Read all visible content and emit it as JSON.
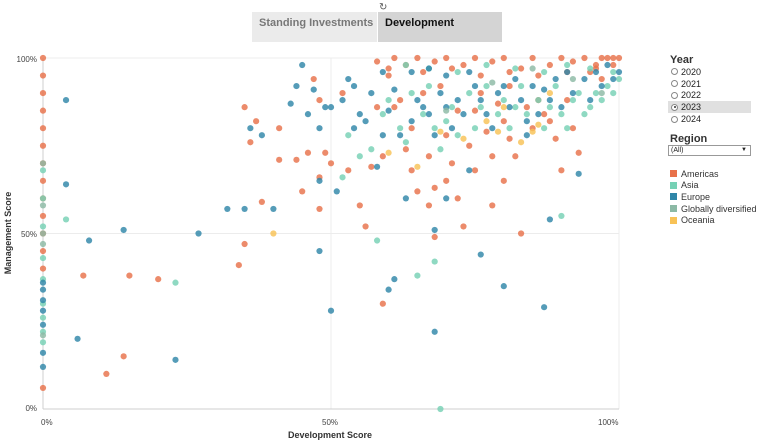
{
  "tabs": [
    {
      "label": "Standing Investments",
      "active": false
    },
    {
      "label": "Development",
      "active": true
    }
  ],
  "filters": {
    "year_title": "Year",
    "years": [
      "2020",
      "2021",
      "2022",
      "2023",
      "2024"
    ],
    "selected_year": "2023",
    "region_title": "Region",
    "region_value": "(All)"
  },
  "legend": [
    {
      "label": "Americas",
      "color": "#e8714a"
    },
    {
      "label": "Asia",
      "color": "#76d1b5"
    },
    {
      "label": "Europe",
      "color": "#2f86a8"
    },
    {
      "label": "Globally diversified",
      "color": "#8cb9a5"
    },
    {
      "label": "Oceania",
      "color": "#f8c256"
    }
  ],
  "chart_data": {
    "type": "scatter",
    "xlabel": "Development Score",
    "ylabel": "Management Score",
    "xlim": [
      0,
      100
    ],
    "ylim": [
      0,
      100
    ],
    "x_ticks": [
      "0%",
      "50%",
      "100%"
    ],
    "y_ticks": [
      "0%",
      "50%",
      "100%"
    ],
    "grid": true,
    "series": [
      {
        "name": "Americas",
        "color": "#e8714a",
        "points": [
          [
            0,
            100
          ],
          [
            0,
            95
          ],
          [
            0,
            90
          ],
          [
            0,
            85
          ],
          [
            0,
            80
          ],
          [
            0,
            75
          ],
          [
            0,
            70
          ],
          [
            0,
            65
          ],
          [
            0,
            60
          ],
          [
            0,
            55
          ],
          [
            0,
            50
          ],
          [
            0,
            45
          ],
          [
            0,
            40
          ],
          [
            0,
            6
          ],
          [
            7,
            38
          ],
          [
            11,
            10
          ],
          [
            14,
            15
          ],
          [
            15,
            38
          ],
          [
            20,
            37
          ],
          [
            34,
            41
          ],
          [
            35,
            47
          ],
          [
            35,
            86
          ],
          [
            36,
            76
          ],
          [
            37,
            82
          ],
          [
            38,
            59
          ],
          [
            41,
            71
          ],
          [
            41,
            80
          ],
          [
            44,
            71
          ],
          [
            45,
            62
          ],
          [
            46,
            73
          ],
          [
            47,
            94
          ],
          [
            48,
            66
          ],
          [
            48,
            57
          ],
          [
            48,
            88
          ],
          [
            49,
            73
          ],
          [
            50,
            70
          ],
          [
            52,
            90
          ],
          [
            53,
            68
          ],
          [
            55,
            58
          ],
          [
            56,
            52
          ],
          [
            57,
            69
          ],
          [
            58,
            86
          ],
          [
            59,
            30
          ],
          [
            59,
            72
          ],
          [
            60,
            95
          ],
          [
            61,
            86
          ],
          [
            62,
            88
          ],
          [
            63,
            74
          ],
          [
            64,
            80
          ],
          [
            64,
            68
          ],
          [
            65,
            62
          ],
          [
            66,
            90
          ],
          [
            67,
            72
          ],
          [
            67,
            58
          ],
          [
            68,
            63
          ],
          [
            68,
            49
          ],
          [
            69,
            92
          ],
          [
            70,
            78
          ],
          [
            70,
            65
          ],
          [
            71,
            70
          ],
          [
            72,
            85
          ],
          [
            72,
            60
          ],
          [
            73,
            52
          ],
          [
            74,
            75
          ],
          [
            75,
            85
          ],
          [
            75,
            68
          ],
          [
            76,
            90
          ],
          [
            77,
            79
          ],
          [
            78,
            58
          ],
          [
            78,
            72
          ],
          [
            79,
            87
          ],
          [
            80,
            82
          ],
          [
            80,
            65
          ],
          [
            81,
            77
          ],
          [
            81,
            92
          ],
          [
            82,
            72
          ],
          [
            83,
            50
          ],
          [
            84,
            86
          ],
          [
            85,
            80
          ],
          [
            86,
            88
          ],
          [
            87,
            84
          ],
          [
            88,
            82
          ],
          [
            89,
            77
          ],
          [
            90,
            68
          ],
          [
            91,
            88
          ],
          [
            92,
            80
          ],
          [
            93,
            73
          ],
          [
            95,
            96
          ],
          [
            96,
            98
          ],
          [
            97,
            100
          ],
          [
            99,
            100
          ],
          [
            100,
            100
          ],
          [
            61,
            100
          ],
          [
            65,
            100
          ],
          [
            70,
            100
          ],
          [
            75,
            100
          ],
          [
            80,
            100
          ],
          [
            85,
            100
          ],
          [
            90,
            100
          ],
          [
            94,
            100
          ],
          [
            98,
            100
          ],
          [
            58,
            99
          ],
          [
            63,
            98
          ],
          [
            68,
            99
          ],
          [
            73,
            98
          ],
          [
            78,
            99
          ],
          [
            83,
            97
          ],
          [
            88,
            98
          ],
          [
            92,
            99
          ],
          [
            96,
            97
          ],
          [
            99,
            98
          ],
          [
            60,
            97
          ],
          [
            66,
            96
          ],
          [
            71,
            97
          ],
          [
            76,
            95
          ],
          [
            81,
            96
          ],
          [
            86,
            95
          ],
          [
            91,
            96
          ],
          [
            97,
            94
          ]
        ]
      },
      {
        "name": "Asia",
        "color": "#76d1b5",
        "points": [
          [
            0,
            68
          ],
          [
            0,
            60
          ],
          [
            0,
            52
          ],
          [
            0,
            43
          ],
          [
            0,
            37
          ],
          [
            0,
            30
          ],
          [
            0,
            26
          ],
          [
            0,
            22
          ],
          [
            0,
            19
          ],
          [
            4,
            54
          ],
          [
            23,
            36
          ],
          [
            52,
            66
          ],
          [
            53,
            78
          ],
          [
            55,
            72
          ],
          [
            57,
            74
          ],
          [
            59,
            84
          ],
          [
            60,
            88
          ],
          [
            62,
            80
          ],
          [
            63,
            76
          ],
          [
            64,
            90
          ],
          [
            66,
            84
          ],
          [
            67,
            92
          ],
          [
            68,
            80
          ],
          [
            69,
            74
          ],
          [
            69,
            0
          ],
          [
            70,
            82
          ],
          [
            71,
            86
          ],
          [
            72,
            78
          ],
          [
            74,
            90
          ],
          [
            75,
            80
          ],
          [
            76,
            86
          ],
          [
            77,
            92
          ],
          [
            79,
            84
          ],
          [
            80,
            88
          ],
          [
            81,
            80
          ],
          [
            82,
            86
          ],
          [
            83,
            92
          ],
          [
            84,
            84
          ],
          [
            86,
            88
          ],
          [
            87,
            80
          ],
          [
            88,
            86
          ],
          [
            89,
            92
          ],
          [
            90,
            55
          ],
          [
            90,
            84
          ],
          [
            91,
            80
          ],
          [
            92,
            88
          ],
          [
            93,
            90
          ],
          [
            94,
            84
          ],
          [
            95,
            86
          ],
          [
            96,
            90
          ],
          [
            97,
            88
          ],
          [
            98,
            92
          ],
          [
            99,
            90
          ],
          [
            100,
            94
          ],
          [
            68,
            42
          ],
          [
            65,
            38
          ],
          [
            58,
            48
          ],
          [
            63,
            98
          ],
          [
            67,
            97
          ],
          [
            72,
            96
          ],
          [
            77,
            98
          ],
          [
            82,
            97
          ],
          [
            87,
            96
          ],
          [
            91,
            98
          ],
          [
            95,
            97
          ],
          [
            99,
            96
          ]
        ]
      },
      {
        "name": "Europe",
        "color": "#2f86a8",
        "points": [
          [
            0,
            36
          ],
          [
            0,
            34
          ],
          [
            0,
            31
          ],
          [
            0,
            28
          ],
          [
            0,
            24
          ],
          [
            0,
            16
          ],
          [
            0,
            12
          ],
          [
            4,
            88
          ],
          [
            4,
            64
          ],
          [
            6,
            20
          ],
          [
            8,
            48
          ],
          [
            14,
            51
          ],
          [
            23,
            14
          ],
          [
            27,
            50
          ],
          [
            32,
            57
          ],
          [
            35,
            57
          ],
          [
            36,
            80
          ],
          [
            38,
            78
          ],
          [
            40,
            57
          ],
          [
            43,
            87
          ],
          [
            44,
            92
          ],
          [
            45,
            98
          ],
          [
            46,
            84
          ],
          [
            47,
            91
          ],
          [
            48,
            45
          ],
          [
            48,
            65
          ],
          [
            48,
            80
          ],
          [
            49,
            86
          ],
          [
            50,
            28
          ],
          [
            50,
            86
          ],
          [
            51,
            62
          ],
          [
            52,
            88
          ],
          [
            53,
            94
          ],
          [
            54,
            80
          ],
          [
            54,
            92
          ],
          [
            55,
            84
          ],
          [
            56,
            82
          ],
          [
            57,
            90
          ],
          [
            58,
            69
          ],
          [
            59,
            78
          ],
          [
            59,
            96
          ],
          [
            60,
            85
          ],
          [
            60,
            34
          ],
          [
            61,
            37
          ],
          [
            61,
            91
          ],
          [
            62,
            78
          ],
          [
            63,
            60
          ],
          [
            64,
            82
          ],
          [
            64,
            96
          ],
          [
            65,
            88
          ],
          [
            66,
            86
          ],
          [
            67,
            84
          ],
          [
            67,
            97
          ],
          [
            68,
            78
          ],
          [
            68,
            22
          ],
          [
            68,
            51
          ],
          [
            69,
            90
          ],
          [
            70,
            86
          ],
          [
            70,
            95
          ],
          [
            71,
            80
          ],
          [
            72,
            88
          ],
          [
            73,
            84
          ],
          [
            74,
            96
          ],
          [
            75,
            92
          ],
          [
            76,
            44
          ],
          [
            76,
            88
          ],
          [
            77,
            84
          ],
          [
            78,
            80
          ],
          [
            79,
            90
          ],
          [
            80,
            35
          ],
          [
            80,
            92
          ],
          [
            81,
            86
          ],
          [
            82,
            94
          ],
          [
            83,
            88
          ],
          [
            84,
            82
          ],
          [
            85,
            92
          ],
          [
            86,
            84
          ],
          [
            87,
            29
          ],
          [
            87,
            91
          ],
          [
            88,
            88
          ],
          [
            88,
            54
          ],
          [
            89,
            94
          ],
          [
            90,
            86
          ],
          [
            91,
            96
          ],
          [
            92,
            90
          ],
          [
            93,
            67
          ],
          [
            94,
            94
          ],
          [
            95,
            88
          ],
          [
            96,
            96
          ],
          [
            97,
            92
          ],
          [
            98,
            98
          ],
          [
            99,
            94
          ],
          [
            100,
            96
          ],
          [
            70,
            60
          ],
          [
            74,
            68
          ],
          [
            84,
            78
          ]
        ]
      },
      {
        "name": "Globally diversified",
        "color": "#8cb9a5",
        "points": [
          [
            0,
            70
          ],
          [
            0,
            58
          ],
          [
            0,
            50
          ],
          [
            0,
            47
          ],
          [
            0,
            21
          ],
          [
            70,
            85
          ],
          [
            78,
            93
          ],
          [
            85,
            97
          ],
          [
            92,
            94
          ],
          [
            97,
            90
          ]
        ]
      },
      {
        "name": "Oceania",
        "color": "#f8c256",
        "points": [
          [
            40,
            50
          ],
          [
            60,
            73
          ],
          [
            65,
            69
          ],
          [
            69,
            79
          ],
          [
            73,
            77
          ],
          [
            77,
            82
          ],
          [
            79,
            79
          ],
          [
            80,
            86
          ],
          [
            83,
            76
          ],
          [
            85,
            79
          ],
          [
            86,
            81
          ],
          [
            88,
            90
          ]
        ]
      }
    ]
  }
}
